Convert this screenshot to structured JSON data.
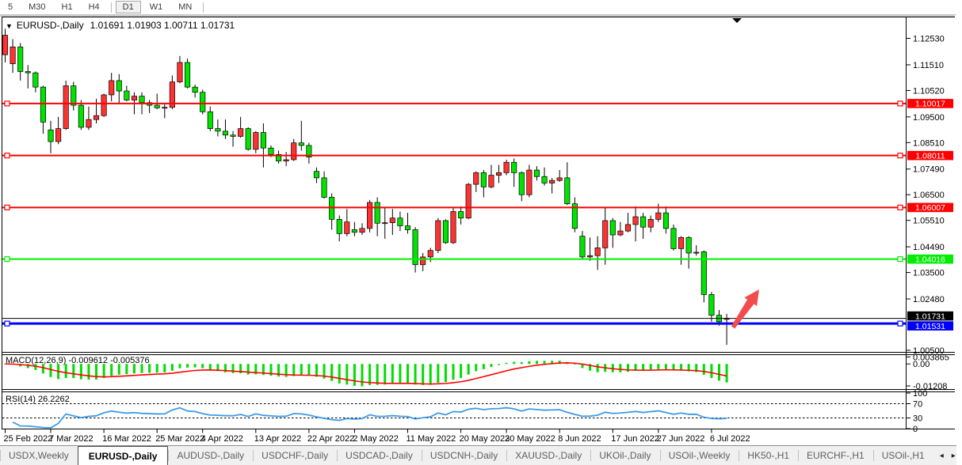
{
  "toolbar": {
    "timeframes": [
      {
        "label": "5",
        "active": false
      },
      {
        "label": "M30",
        "active": false
      },
      {
        "label": "H1",
        "active": false
      },
      {
        "label": "H4",
        "active": false
      },
      {
        "label": "D1",
        "active": true
      },
      {
        "label": "W1",
        "active": false
      },
      {
        "label": "MN",
        "active": false
      }
    ]
  },
  "header": {
    "symbol_title": "EURUSD-,Daily",
    "ohlc_readout": "1.01691 1.01903 1.00711 1.01731",
    "dropdown_icon": "triangle-down"
  },
  "chart_data": {
    "type": "candlestick",
    "symbol": "EURUSD-,Daily",
    "timeframe": "Daily",
    "up_color": "#ff3232",
    "down_color": "#00e400",
    "ylim": [
      1.0044,
      1.1334
    ],
    "price_axis_ticks": [
      "1.12530",
      "1.11510",
      "1.10520",
      "1.09500",
      "1.08510",
      "1.07490",
      "1.06500",
      "1.05510",
      "1.04490",
      "1.03500",
      "1.02480",
      "1.00500"
    ],
    "date_ticks": [
      {
        "index": 0,
        "label": "25 Feb 2022"
      },
      {
        "index": 6,
        "label": "7 Mar 2022"
      },
      {
        "index": 13,
        "label": "16 Mar 2022"
      },
      {
        "index": 20,
        "label": "25 Mar 2022"
      },
      {
        "index": 26,
        "label": "4 Apr 2022"
      },
      {
        "index": 33,
        "label": "13 Apr 2022"
      },
      {
        "index": 40,
        "label": "22 Apr 2022"
      },
      {
        "index": 46,
        "label": "2 May 2022"
      },
      {
        "index": 53,
        "label": "11 May 2022"
      },
      {
        "index": 60,
        "label": "20 May 2022"
      },
      {
        "index": 66,
        "label": "30 May 2022"
      },
      {
        "index": 73,
        "label": "8 Jun 2022"
      },
      {
        "index": 80,
        "label": "17 Jun 2022"
      },
      {
        "index": 86,
        "label": "27 Jun 2022"
      },
      {
        "index": 93,
        "label": "6 Jul 2022"
      }
    ],
    "candles": [
      [
        1.119,
        1.129,
        1.116,
        1.1265
      ],
      [
        1.1155,
        1.125,
        1.112,
        1.122
      ],
      [
        1.122,
        1.1235,
        1.109,
        1.1125
      ],
      [
        1.1125,
        1.115,
        1.106,
        1.112
      ],
      [
        1.112,
        1.1125,
        1.1045,
        1.1065
      ],
      [
        1.1065,
        1.107,
        1.0885,
        1.093
      ],
      [
        1.09,
        1.0935,
        1.081,
        1.0855
      ],
      [
        1.0855,
        1.095,
        1.0845,
        1.0905
      ],
      [
        1.0905,
        1.109,
        1.09,
        1.107
      ],
      [
        1.107,
        1.1085,
        1.0975,
        1.0995
      ],
      [
        1.0995,
        1.1015,
        1.09,
        1.091
      ],
      [
        1.091,
        1.099,
        1.09,
        1.094
      ],
      [
        1.094,
        1.102,
        1.0925,
        1.0955
      ],
      [
        1.0955,
        1.104,
        1.095,
        1.1035
      ],
      [
        1.1035,
        1.112,
        1.101,
        1.109
      ],
      [
        1.109,
        1.1115,
        1.1,
        1.105
      ],
      [
        1.105,
        1.107,
        1.101,
        1.1015
      ],
      [
        1.1015,
        1.1045,
        1.096,
        1.103
      ],
      [
        1.103,
        1.1045,
        1.096,
        1.1005
      ],
      [
        1.1005,
        1.1015,
        1.0965,
        1.0995
      ],
      [
        1.0995,
        1.104,
        1.098,
        1.0985
      ],
      [
        1.0985,
        1.1,
        1.0945,
        1.0987
      ],
      [
        1.0987,
        1.111,
        1.098,
        1.1085
      ],
      [
        1.1085,
        1.1185,
        1.108,
        1.116
      ],
      [
        1.116,
        1.1175,
        1.106,
        1.1065
      ],
      [
        1.1065,
        1.1075,
        1.1025,
        1.1045
      ],
      [
        1.1045,
        1.1055,
        1.096,
        1.097
      ],
      [
        1.097,
        1.099,
        1.0895,
        1.0905
      ],
      [
        1.0905,
        1.094,
        1.0875,
        1.0895
      ],
      [
        1.0895,
        1.094,
        1.0865,
        1.088
      ],
      [
        1.088,
        1.0895,
        1.0835,
        1.0875
      ],
      [
        1.0875,
        1.095,
        1.087,
        1.0905
      ],
      [
        1.0905,
        1.091,
        1.082,
        1.0825
      ],
      [
        1.0825,
        1.0895,
        1.081,
        1.089
      ],
      [
        1.089,
        1.0925,
        1.0755,
        1.083
      ],
      [
        1.083,
        1.084,
        1.0795,
        1.0805
      ],
      [
        1.0805,
        1.082,
        1.077,
        1.078
      ],
      [
        1.078,
        1.0815,
        1.076,
        1.0785
      ],
      [
        1.0785,
        1.0865,
        1.078,
        1.085
      ],
      [
        1.085,
        1.0935,
        1.082,
        1.084
      ],
      [
        1.084,
        1.085,
        1.077,
        1.0795
      ],
      [
        1.074,
        1.0755,
        1.0695,
        1.0715
      ],
      [
        1.0715,
        1.074,
        1.0635,
        1.064
      ],
      [
        1.064,
        1.0655,
        1.0515,
        1.0555
      ],
      [
        1.0555,
        1.057,
        1.047,
        1.05
      ],
      [
        1.05,
        1.0595,
        1.049,
        1.0545
      ],
      [
        1.0515,
        1.0545,
        1.049,
        1.0505
      ],
      [
        1.0505,
        1.054,
        1.0495,
        1.052
      ],
      [
        1.052,
        1.063,
        1.0505,
        1.062
      ],
      [
        1.062,
        1.064,
        1.049,
        1.054
      ],
      [
        1.054,
        1.06,
        1.048,
        1.0542
      ],
      [
        1.0542,
        1.0595,
        1.0495,
        1.056
      ],
      [
        1.056,
        1.0585,
        1.051,
        1.053
      ],
      [
        1.053,
        1.058,
        1.05,
        1.0515
      ],
      [
        1.0515,
        1.0525,
        1.035,
        1.038
      ],
      [
        1.038,
        1.0425,
        1.0355,
        1.041
      ],
      [
        1.041,
        1.0445,
        1.039,
        1.0435
      ],
      [
        1.0435,
        1.056,
        1.0425,
        1.055
      ],
      [
        1.055,
        1.0555,
        1.046,
        1.0465
      ],
      [
        1.0465,
        1.06,
        1.046,
        1.0585
      ],
      [
        1.0585,
        1.0605,
        1.0535,
        1.056
      ],
      [
        1.056,
        1.0695,
        1.0555,
        1.069
      ],
      [
        1.069,
        1.074,
        1.066,
        1.0735
      ],
      [
        1.0735,
        1.0745,
        1.064,
        1.068
      ],
      [
        1.068,
        1.0765,
        1.0675,
        1.0725
      ],
      [
        1.0725,
        1.0765,
        1.0695,
        1.0735
      ],
      [
        1.0735,
        1.0785,
        1.0725,
        1.0775
      ],
      [
        1.0775,
        1.079,
        1.068,
        1.0735
      ],
      [
        1.0735,
        1.074,
        1.0625,
        1.065
      ],
      [
        1.065,
        1.0765,
        1.064,
        1.0745
      ],
      [
        1.0745,
        1.076,
        1.0705,
        1.072
      ],
      [
        1.072,
        1.0755,
        1.0685,
        1.0695
      ],
      [
        1.0695,
        1.0715,
        1.0655,
        1.0705
      ],
      [
        1.0705,
        1.0745,
        1.07,
        1.0715
      ],
      [
        1.0715,
        1.0775,
        1.061,
        1.0615
      ],
      [
        1.0615,
        1.064,
        1.0505,
        1.052
      ],
      [
        1.049,
        1.051,
        1.04,
        1.041
      ],
      [
        1.041,
        1.0485,
        1.0395,
        1.0415
      ],
      [
        1.0415,
        1.049,
        1.036,
        1.0445
      ],
      [
        1.0445,
        1.06,
        1.038,
        1.055
      ],
      [
        1.055,
        1.056,
        1.0445,
        1.0495
      ],
      [
        1.0495,
        1.0545,
        1.049,
        1.051
      ],
      [
        1.051,
        1.058,
        1.0505,
        1.0535
      ],
      [
        1.0535,
        1.0605,
        1.047,
        1.0565
      ],
      [
        1.0565,
        1.058,
        1.048,
        1.0525
      ],
      [
        1.0525,
        1.057,
        1.0505,
        1.0555
      ],
      [
        1.0555,
        1.0615,
        1.0545,
        1.058
      ],
      [
        1.058,
        1.0605,
        1.05,
        1.052
      ],
      [
        1.052,
        1.0535,
        1.0435,
        1.0442
      ],
      [
        1.0442,
        1.049,
        1.038,
        1.0485
      ],
      [
        1.0485,
        1.049,
        1.0365,
        1.0425
      ],
      [
        1.0425,
        1.0455,
        1.0415,
        1.0428
      ],
      [
        1.043,
        1.0435,
        1.0235,
        1.0265
      ],
      [
        1.0265,
        1.0275,
        1.016,
        1.0185
      ],
      [
        1.0185,
        1.0205,
        1.0145,
        1.016
      ],
      [
        1.01691,
        1.01903,
        1.00711,
        1.01731
      ]
    ],
    "hlines": [
      {
        "price": 1.10017,
        "label": "1.10017",
        "color": "#ff0000",
        "width": 2
      },
      {
        "price": 1.08011,
        "label": "1.08011",
        "color": "#ff0000",
        "width": 2
      },
      {
        "price": 1.06007,
        "label": "1.06007",
        "color": "#ff0000",
        "width": 2
      },
      {
        "price": 1.04016,
        "label": "1.04016",
        "color": "#00ee00",
        "width": 2
      },
      {
        "price": 1.01531,
        "label": "1.01531",
        "color": "#0000ff",
        "width": 3
      }
    ],
    "bid_line": {
      "price": 1.01731,
      "label": "1.01731",
      "color": "#000000"
    },
    "annotations": [
      {
        "type": "arrow-up-right",
        "tail_x": 925,
        "tail_y": 395,
        "tip_x": 958,
        "tip_y": 347,
        "color": "#f34c4c"
      },
      {
        "type": "chart-shift-marker",
        "x": 930,
        "y": 4,
        "color": "#000000"
      }
    ],
    "indicators": {
      "macd": {
        "name": "MACD(12,26,9)",
        "macd_value": "-0.009612",
        "signal_value": "-0.005376",
        "axis_labels": [
          "0.003865",
          "0.00",
          "-0.01208"
        ],
        "histogram_color": "#00dd00",
        "signal_color": "#ff0000"
      },
      "rsi": {
        "name": "RSI(14)",
        "value": "26.2262",
        "axis_labels": [
          "100",
          "70",
          "30",
          "0"
        ],
        "levels": [
          70,
          30
        ],
        "line_color": "#3d9be9"
      }
    }
  },
  "tabs": {
    "items": [
      {
        "label": "USDX,Weekly",
        "active": false,
        "truncated": false
      },
      {
        "label": "EURUSD-,Daily",
        "active": true,
        "truncated": false
      },
      {
        "label": "AUDUSD-,Daily",
        "active": false,
        "truncated": false
      },
      {
        "label": "USDCHF-,Daily",
        "active": false,
        "truncated": false
      },
      {
        "label": "USDCAD-,Daily",
        "active": false,
        "truncated": false
      },
      {
        "label": "USDCNH-,Daily",
        "active": false,
        "truncated": false
      },
      {
        "label": "XAUUSD-,Daily",
        "active": false,
        "truncated": false
      },
      {
        "label": "UKOil-,Daily",
        "active": false,
        "truncated": false
      },
      {
        "label": "USOil-,Weekly",
        "active": false,
        "truncated": false
      },
      {
        "label": "HK50-,H1",
        "active": false,
        "truncated": false
      },
      {
        "label": "EURCHF-,H1",
        "active": false,
        "truncated": false
      },
      {
        "label": "USOil-,H1",
        "active": false,
        "truncated": true
      }
    ],
    "scroll_left_icon": "◂",
    "scroll_right_icon": "▸"
  }
}
